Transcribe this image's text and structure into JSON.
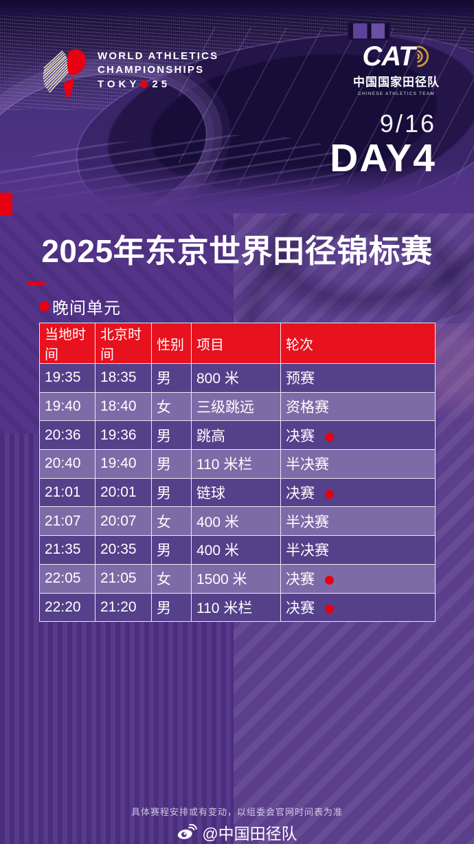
{
  "header": {
    "wa_logo": {
      "line1": "WORLD ATHLETICS",
      "line2": "CHAMPIONSHIPS",
      "line3_prefix": "TOKY",
      "line3_suffix": "25"
    },
    "cat_logo": {
      "acronym": "CAT",
      "name_cn": "中国国家田径队",
      "name_en": "CHINESE ATHLETICS TEAM"
    },
    "date": "9/16",
    "day": "DAY4"
  },
  "title": "2025年东京世界田径锦标赛",
  "session": {
    "label": "晚间单元"
  },
  "schedule": {
    "columns": [
      "当地时间",
      "北京时间",
      "性别",
      "项目",
      "轮次"
    ],
    "rows": [
      {
        "local": "19:35",
        "beijing": "18:35",
        "gender": "男",
        "event": "800 米",
        "round": "预赛",
        "live_dot": false
      },
      {
        "local": "19:40",
        "beijing": "18:40",
        "gender": "女",
        "event": "三级跳远",
        "round": "资格赛",
        "live_dot": false
      },
      {
        "local": "20:36",
        "beijing": "19:36",
        "gender": "男",
        "event": "跳高",
        "round": "决赛",
        "live_dot": true
      },
      {
        "local": "20:40",
        "beijing": "19:40",
        "gender": "男",
        "event": "110 米栏",
        "round": "半决赛",
        "live_dot": false
      },
      {
        "local": "21:01",
        "beijing": "20:01",
        "gender": "男",
        "event": "链球",
        "round": "决赛",
        "live_dot": true
      },
      {
        "local": "21:07",
        "beijing": "20:07",
        "gender": "女",
        "event": "400 米",
        "round": "半决赛",
        "live_dot": false
      },
      {
        "local": "21:35",
        "beijing": "20:35",
        "gender": "男",
        "event": "400 米",
        "round": "半决赛",
        "live_dot": false
      },
      {
        "local": "22:05",
        "beijing": "21:05",
        "gender": "女",
        "event": "1500 米",
        "round": "决赛",
        "live_dot": true
      },
      {
        "local": "22:20",
        "beijing": "21:20",
        "gender": "男",
        "event": "110 米栏",
        "round": "决赛",
        "live_dot": true
      }
    ]
  },
  "footer": {
    "disclaimer": "具体赛程安排或有变动，以组委会官网时间表为准",
    "credit": "@中国田径队"
  },
  "colors": {
    "accent_red": "#e60012",
    "header_red": "#e8111e",
    "row_dark": "#55408a",
    "row_light": "#7d6ba7",
    "background_purple": "#533488",
    "gold": "#c9993f"
  }
}
